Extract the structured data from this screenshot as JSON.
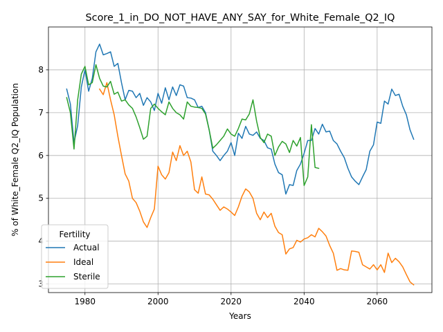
{
  "chart_data": {
    "type": "line",
    "title": "Score_1_in_DO_NOT_HAVE_ANY_SAY_for_White_Female_Q2_IQ",
    "xlabel": "Years",
    "ylabel": "% of White_Female Q2_IQ Population",
    "xlim": [
      1970,
      2075
    ],
    "ylim": [
      2.8,
      9.0
    ],
    "xticks": [
      1980,
      2000,
      2020,
      2040,
      2060
    ],
    "yticks": [
      3,
      4,
      5,
      6,
      7,
      8
    ],
    "grid": true,
    "legend": {
      "title": "Fertility",
      "placement": "lower-left"
    },
    "series": [
      {
        "name": "Actual",
        "color": "#1f77b4",
        "x": [
          1975,
          1976,
          1977,
          1978,
          1979,
          1980,
          1981,
          1982,
          1983,
          1984,
          1985,
          1986,
          1987,
          1988,
          1989,
          1990,
          1991,
          1992,
          1993,
          1994,
          1995,
          1996,
          1997,
          1998,
          1999,
          2000,
          2001,
          2002,
          2003,
          2004,
          2005,
          2006,
          2007,
          2008,
          2009,
          2010,
          2011,
          2012,
          2013,
          2014,
          2015,
          2016,
          2017,
          2018,
          2019,
          2020,
          2021,
          2022,
          2023,
          2024,
          2025,
          2026,
          2027,
          2028,
          2029,
          2030,
          2031,
          2032,
          2033,
          2034,
          2035,
          2036,
          2037,
          2038,
          2039,
          2040,
          2041,
          2042,
          2043,
          2044,
          2045,
          2046,
          2047,
          2048,
          2049,
          2050,
          2051,
          2052,
          2053,
          2054,
          2055,
          2056,
          2057,
          2058,
          2059,
          2060,
          2061,
          2062,
          2063,
          2064,
          2065,
          2066,
          2067,
          2068,
          2069,
          2070
        ],
        "values": [
          7.55,
          7.2,
          6.3,
          6.7,
          7.6,
          8.0,
          7.5,
          7.8,
          8.42,
          8.6,
          8.35,
          8.38,
          8.42,
          8.08,
          8.15,
          7.7,
          7.3,
          7.52,
          7.5,
          7.35,
          7.45,
          7.17,
          7.35,
          7.25,
          7.05,
          7.45,
          7.22,
          7.58,
          7.3,
          7.6,
          7.4,
          7.65,
          7.62,
          7.35,
          7.34,
          7.3,
          7.12,
          7.15,
          7.0,
          6.6,
          6.1,
          6.0,
          5.88,
          6.0,
          6.1,
          6.3,
          6.0,
          6.52,
          6.4,
          6.68,
          6.5,
          6.47,
          6.55,
          6.4,
          6.35,
          6.18,
          6.15,
          5.8,
          5.6,
          5.55,
          5.1,
          5.32,
          5.3,
          5.65,
          5.8,
          6.05,
          6.35,
          6.35,
          6.63,
          6.5,
          6.73,
          6.55,
          6.57,
          6.35,
          6.27,
          6.1,
          5.95,
          5.7,
          5.5,
          5.4,
          5.32,
          5.5,
          5.67,
          6.1,
          6.25,
          6.78,
          6.75,
          7.27,
          7.2,
          7.55,
          7.4,
          7.43,
          7.15,
          6.95,
          6.6,
          6.38
        ]
      },
      {
        "name": "Ideal",
        "color": "#ff7f0e",
        "x": [
          1984,
          1985,
          1986,
          1987,
          1988,
          1989,
          1990,
          1991,
          1992,
          1993,
          1994,
          1995,
          1996,
          1997,
          1998,
          1999,
          2000,
          2001,
          2002,
          2003,
          2004,
          2005,
          2006,
          2007,
          2008,
          2009,
          2010,
          2011,
          2012,
          2013,
          2014,
          2015,
          2016,
          2017,
          2018,
          2019,
          2020,
          2021,
          2022,
          2023,
          2024,
          2025,
          2026,
          2027,
          2028,
          2029,
          2030,
          2031,
          2032,
          2033,
          2034,
          2035,
          2036,
          2037,
          2038,
          2039,
          2040,
          2041,
          2042,
          2043,
          2044,
          2045,
          2046,
          2047,
          2048,
          2049,
          2050,
          2051,
          2052,
          2053,
          2054,
          2055,
          2056,
          2057,
          2058,
          2059,
          2060,
          2061,
          2062,
          2063,
          2064,
          2065,
          2066,
          2067,
          2068,
          2069,
          2070
        ],
        "values": [
          7.55,
          7.42,
          7.7,
          7.3,
          6.95,
          6.45,
          6.0,
          5.57,
          5.4,
          5.0,
          4.9,
          4.7,
          4.45,
          4.32,
          4.55,
          4.75,
          5.75,
          5.55,
          5.45,
          5.6,
          6.08,
          5.88,
          6.23,
          6.0,
          6.1,
          5.85,
          5.2,
          5.12,
          5.5,
          5.1,
          5.08,
          4.98,
          4.85,
          4.72,
          4.8,
          4.75,
          4.68,
          4.6,
          4.8,
          5.05,
          5.22,
          5.15,
          5.0,
          4.65,
          4.5,
          4.68,
          4.55,
          4.65,
          4.35,
          4.2,
          4.15,
          3.7,
          3.82,
          3.85,
          4.02,
          3.98,
          4.05,
          4.08,
          4.15,
          4.1,
          4.3,
          4.22,
          4.12,
          3.9,
          3.72,
          3.32,
          3.36,
          3.33,
          3.32,
          3.77,
          3.76,
          3.74,
          3.45,
          3.4,
          3.35,
          3.45,
          3.33,
          3.45,
          3.27,
          3.72,
          3.5,
          3.6,
          3.52,
          3.4,
          3.22,
          3.05,
          2.98
        ]
      },
      {
        "name": "Sterile",
        "color": "#2ca02c",
        "x": [
          1975,
          1976,
          1977,
          1978,
          1979,
          1980,
          1981,
          1982,
          1983,
          1984,
          1985,
          1986,
          1987,
          1988,
          1989,
          1990,
          1991,
          1992,
          1993,
          1994,
          1995,
          1996,
          1997,
          1998,
          1999,
          2000,
          2001,
          2002,
          2003,
          2004,
          2005,
          2006,
          2007,
          2008,
          2009,
          2010,
          2011,
          2012,
          2013,
          2014,
          2015,
          2016,
          2017,
          2018,
          2019,
          2020,
          2021,
          2022,
          2023,
          2024,
          2025,
          2026,
          2027,
          2028,
          2029,
          2030,
          2031,
          2032,
          2033,
          2034,
          2035,
          2036,
          2037,
          2038,
          2039,
          2040,
          2041,
          2042,
          2043,
          2044
        ],
        "values": [
          7.35,
          7.0,
          6.15,
          7.3,
          7.9,
          8.08,
          7.65,
          7.7,
          8.12,
          7.8,
          7.62,
          7.6,
          7.73,
          7.43,
          7.48,
          7.27,
          7.3,
          7.18,
          7.1,
          6.9,
          6.65,
          6.38,
          6.45,
          7.1,
          7.2,
          7.1,
          7.02,
          6.95,
          7.25,
          7.1,
          7.0,
          6.95,
          6.85,
          7.25,
          7.15,
          7.13,
          7.12,
          7.1,
          6.97,
          6.6,
          6.17,
          6.25,
          6.35,
          6.45,
          6.62,
          6.5,
          6.45,
          6.63,
          6.85,
          6.83,
          6.97,
          7.3,
          6.8,
          6.42,
          6.3,
          6.5,
          6.45,
          6.0,
          6.2,
          6.33,
          6.27,
          6.07,
          6.35,
          6.22,
          6.42,
          5.3,
          5.5,
          6.72,
          5.72,
          5.7
        ]
      }
    ]
  }
}
